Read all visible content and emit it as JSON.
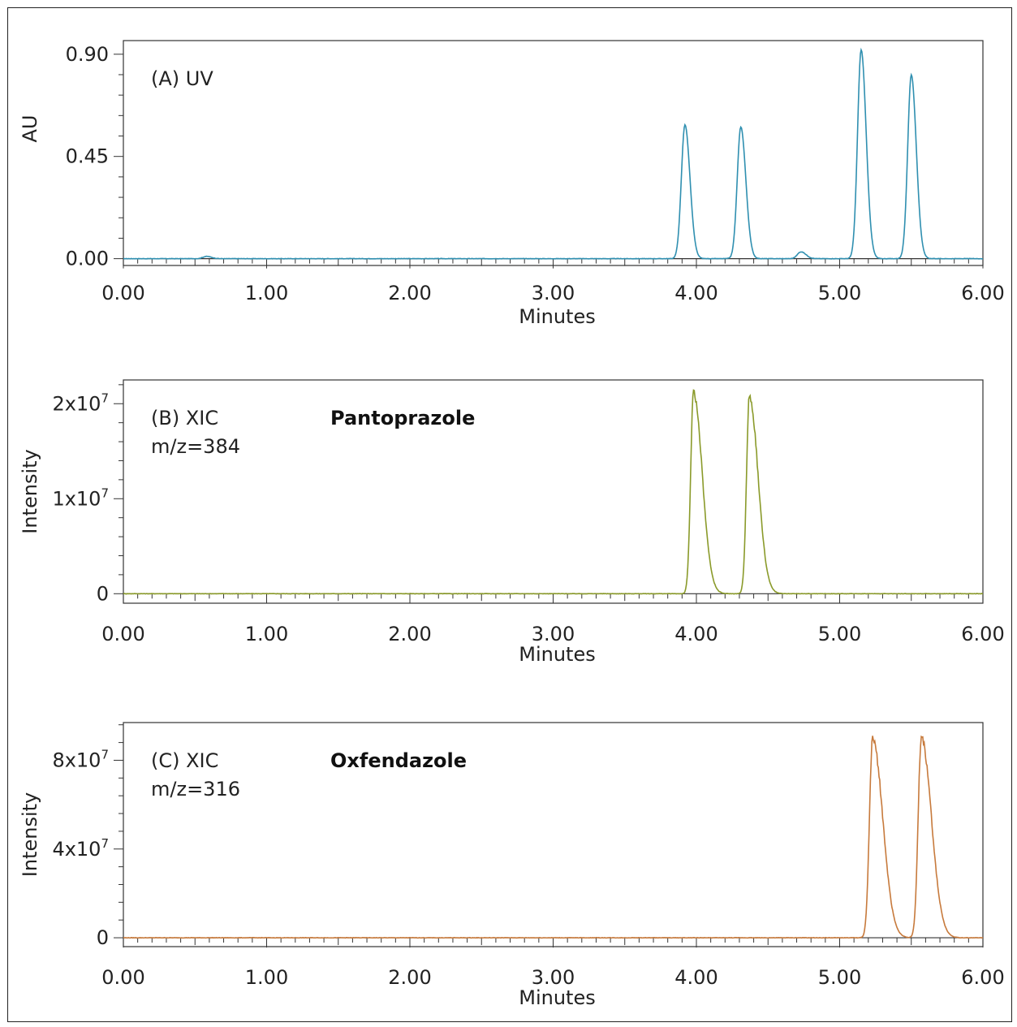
{
  "chart_data": [
    {
      "type": "line",
      "panel_label": "(A) UV",
      "xlabel": "Minutes",
      "ylabel": "AU",
      "xlim": [
        0,
        6
      ],
      "ylim": [
        -0.03,
        0.96
      ],
      "x_ticks": [
        "0.00",
        "1.00",
        "2.00",
        "3.00",
        "4.00",
        "5.00",
        "6.00"
      ],
      "y_ticks": [
        {
          "value": 0.0,
          "label": "0.00"
        },
        {
          "value": 0.45,
          "label": "0.45"
        },
        {
          "value": 0.9,
          "label": "0.90"
        }
      ],
      "color": "#2f8fb0",
      "baseline": 0.0,
      "peaks": [
        {
          "x": 0.58,
          "y": 0.01
        },
        {
          "x": 3.92,
          "y": 0.59
        },
        {
          "x": 4.31,
          "y": 0.58
        },
        {
          "x": 4.73,
          "y": 0.03
        },
        {
          "x": 5.15,
          "y": 0.92
        },
        {
          "x": 5.5,
          "y": 0.81
        }
      ]
    },
    {
      "type": "line",
      "panel_label": "(B) XIC",
      "panel_sublabel": "m/z=384",
      "compound": "Pantoprazole",
      "xlabel": "Minutes",
      "ylabel": "Intensity",
      "xlim": [
        0,
        6
      ],
      "ylim": [
        -1000000,
        22500000
      ],
      "x_ticks": [
        "0.00",
        "1.00",
        "2.00",
        "3.00",
        "4.00",
        "5.00",
        "6.00"
      ],
      "y_ticks": [
        {
          "value": 0,
          "label": "0"
        },
        {
          "value": 10000000,
          "label": "1x10",
          "exp": "7"
        },
        {
          "value": 20000000,
          "label": "2x10",
          "exp": "7"
        }
      ],
      "color": "#8a9a2a",
      "baseline": 0,
      "peaks": [
        {
          "x": 3.98,
          "y": 21200000
        },
        {
          "x": 4.37,
          "y": 20800000
        }
      ]
    },
    {
      "type": "line",
      "panel_label": "(C) XIC",
      "panel_sublabel": "m/z=316",
      "compound": "Oxfendazole",
      "xlabel": "Minutes",
      "ylabel": "Intensity",
      "xlim": [
        0,
        6
      ],
      "ylim": [
        -4000000,
        97000000
      ],
      "x_ticks": [
        "0.00",
        "1.00",
        "2.00",
        "3.00",
        "4.00",
        "5.00",
        "6.00"
      ],
      "y_ticks": [
        {
          "value": 0,
          "label": "0"
        },
        {
          "value": 40000000,
          "label": "4x10",
          "exp": "7"
        },
        {
          "value": 80000000,
          "label": "8x10",
          "exp": "7"
        }
      ],
      "color": "#c77a3c",
      "baseline": 0,
      "peaks": [
        {
          "x": 5.23,
          "y": 90000000
        },
        {
          "x": 5.57,
          "y": 90000000
        }
      ]
    }
  ]
}
